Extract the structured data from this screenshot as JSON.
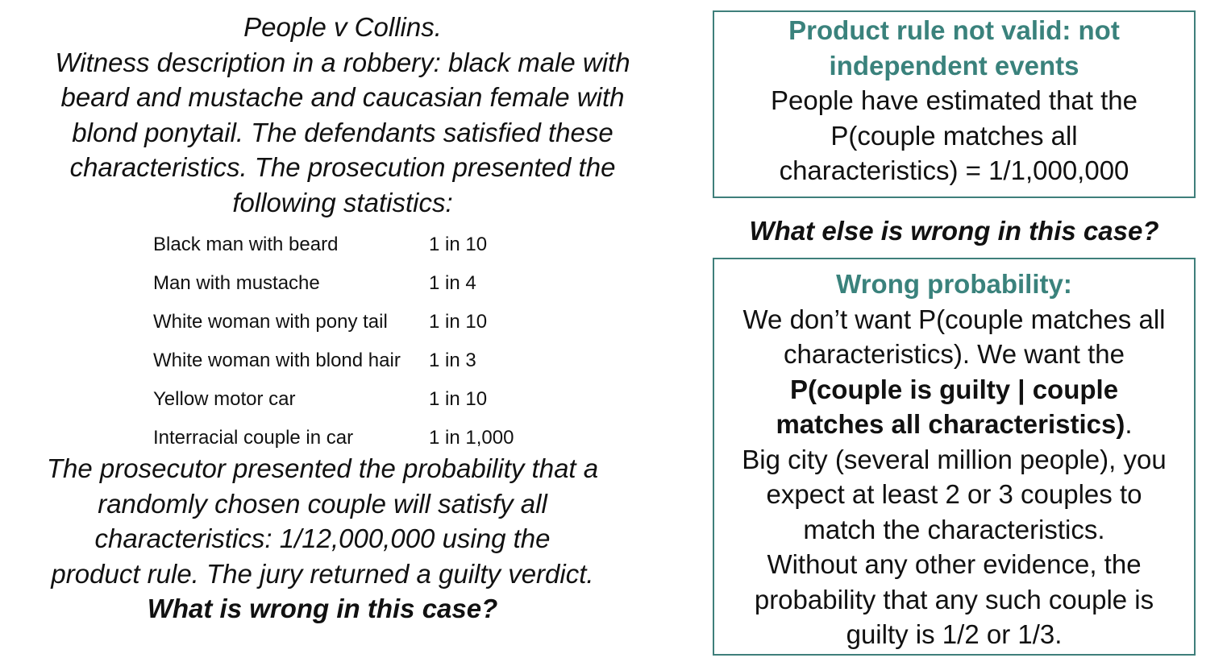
{
  "left": {
    "title": "People v Collins.",
    "intro_lines": [
      "Witness description in a robbery: black male with",
      "beard and mustache and caucasian female with",
      "blond ponytail. The defendants satisfied these",
      "characteristics. The prosecution presented the",
      "following statistics:"
    ],
    "statistics": [
      {
        "label": "Black man with beard",
        "value": "1 in 10"
      },
      {
        "label": "Man with mustache",
        "value": "1 in 4"
      },
      {
        "label": "White woman with pony tail",
        "value": "1 in 10"
      },
      {
        "label": "White woman with blond hair",
        "value": "1 in 3"
      },
      {
        "label": "Yellow motor car",
        "value": "1 in 10"
      },
      {
        "label": "Interracial couple in car",
        "value": "1 in 1,000"
      }
    ],
    "conclusion_lines": [
      "The prosecutor presented the probability that a",
      "randomly chosen couple will satisfy all",
      "characteristics: 1/12,000,000 using the",
      "product rule. The jury returned a guilty verdict."
    ],
    "question": "What is wrong in this case?"
  },
  "box1": {
    "title_lines": [
      "Product rule not valid: not",
      "independent events"
    ],
    "body_lines": [
      "People have estimated that the",
      "P(couple matches all",
      "characteristics) = 1/1,000,000"
    ]
  },
  "middle_question": "What else is wrong in this case?",
  "box2": {
    "title": "Wrong probability:",
    "line1": "We don’t want P(couple matches all",
    "line2": "characteristics). We want the",
    "bold_line1": "P(couple is guilty | couple",
    "bold_line2": "matches all characteristics)",
    "bold_tail": ".",
    "rest_lines": [
      "Big city (several million people), you",
      "expect at least 2 or 3 couples to",
      "match the characteristics.",
      "Without any other evidence, the",
      "probability that any such couple is",
      "guilty is 1/2 or 1/3."
    ]
  },
  "colors": {
    "accent": "#3a827c",
    "box_border": "#3f7f7b"
  }
}
